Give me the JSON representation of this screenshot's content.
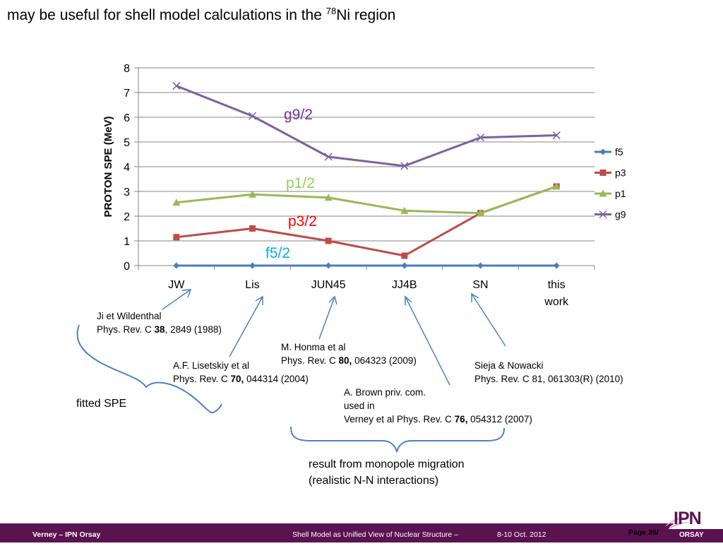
{
  "title": {
    "main": "may be useful for shell model calculations in the ",
    "superscript": "78",
    "suffix": "Ni region"
  },
  "chart_data": {
    "type": "line",
    "ylabel": "PROTON SPE (MeV)",
    "ylim": [
      0,
      8
    ],
    "y_ticks": [
      0,
      1,
      2,
      3,
      4,
      5,
      6,
      7,
      8
    ],
    "categories": [
      "JW",
      "Lis",
      "JUN45",
      "JJ4B",
      "SN",
      "this work"
    ],
    "category_lines": [
      [
        "JW"
      ],
      [
        "Lis"
      ],
      [
        "JUN45"
      ],
      [
        "JJ4B"
      ],
      [
        "SN"
      ],
      [
        "this",
        "work"
      ]
    ],
    "grid": true,
    "legend_position": "right",
    "series": [
      {
        "name": "f5",
        "label": "f5/2",
        "color": "#4a7ebb",
        "label_color": "#00b0f0",
        "marker": "diamond",
        "values": [
          0,
          0,
          0,
          0,
          0,
          0
        ]
      },
      {
        "name": "p3",
        "label": "p3/2",
        "color": "#be4b48",
        "label_color": "#ff0000",
        "marker": "square",
        "values": [
          1.15,
          1.5,
          1.0,
          0.4,
          2.12,
          3.2
        ]
      },
      {
        "name": "p1",
        "label": "p1/2",
        "color": "#98b954",
        "label_color": "#92d050",
        "marker": "triangle",
        "values": [
          2.55,
          2.88,
          2.75,
          2.22,
          2.12,
          3.2
        ]
      },
      {
        "name": "g9",
        "label": "g9/2",
        "color": "#7d60a0",
        "label_color": "#7030a0",
        "marker": "x",
        "values": [
          7.27,
          6.05,
          4.4,
          4.03,
          5.18,
          5.27
        ]
      }
    ]
  },
  "references": {
    "jw": {
      "line1": "Ji et Wildenthal",
      "line2_pre": "Phys. Rev. C ",
      "line2_bold": "38",
      "line2_post": ", 2849 (1988)"
    },
    "lis": {
      "line1": "A.F. Lisetskiy et al",
      "line2_pre": "Phys. Rev. C ",
      "line2_bold": "70,",
      "line2_post": " 044314 (2004)"
    },
    "jun45": {
      "line1": "M. Honma et al",
      "line2_pre": "Phys. Rev. C ",
      "line2_bold": "80,",
      "line2_post": " 064323 (2009)"
    },
    "jj4b": {
      "line1": "A. Brown priv. com.",
      "line2": "used in",
      "line3_pre": "Verney et al Phys. Rev. C ",
      "line3_bold": "76,",
      "line3_post": " 054312 (2007)"
    },
    "sn": {
      "line1": "Sieja & Nowacki",
      "line2": "Phys. Rev. C 81, 061303(R) (2010)"
    }
  },
  "notes": {
    "fitted": "fitted SPE",
    "monopole_line1": "result from monopole migration",
    "monopole_line2": "(realistic N-N interactions)"
  },
  "footer": {
    "author": "Verney – IPN Orsay",
    "talk": "Shell Model as Unified View of Nuclear Structure –",
    "date": "8-10 Oct. 2012",
    "page": "Page 35/"
  },
  "logo": {
    "text": "IPN",
    "sub": "ORSAY"
  },
  "colors": {
    "footer_bg": "#5b1250",
    "arrow": "#4f81bd",
    "grid": "#868686"
  }
}
